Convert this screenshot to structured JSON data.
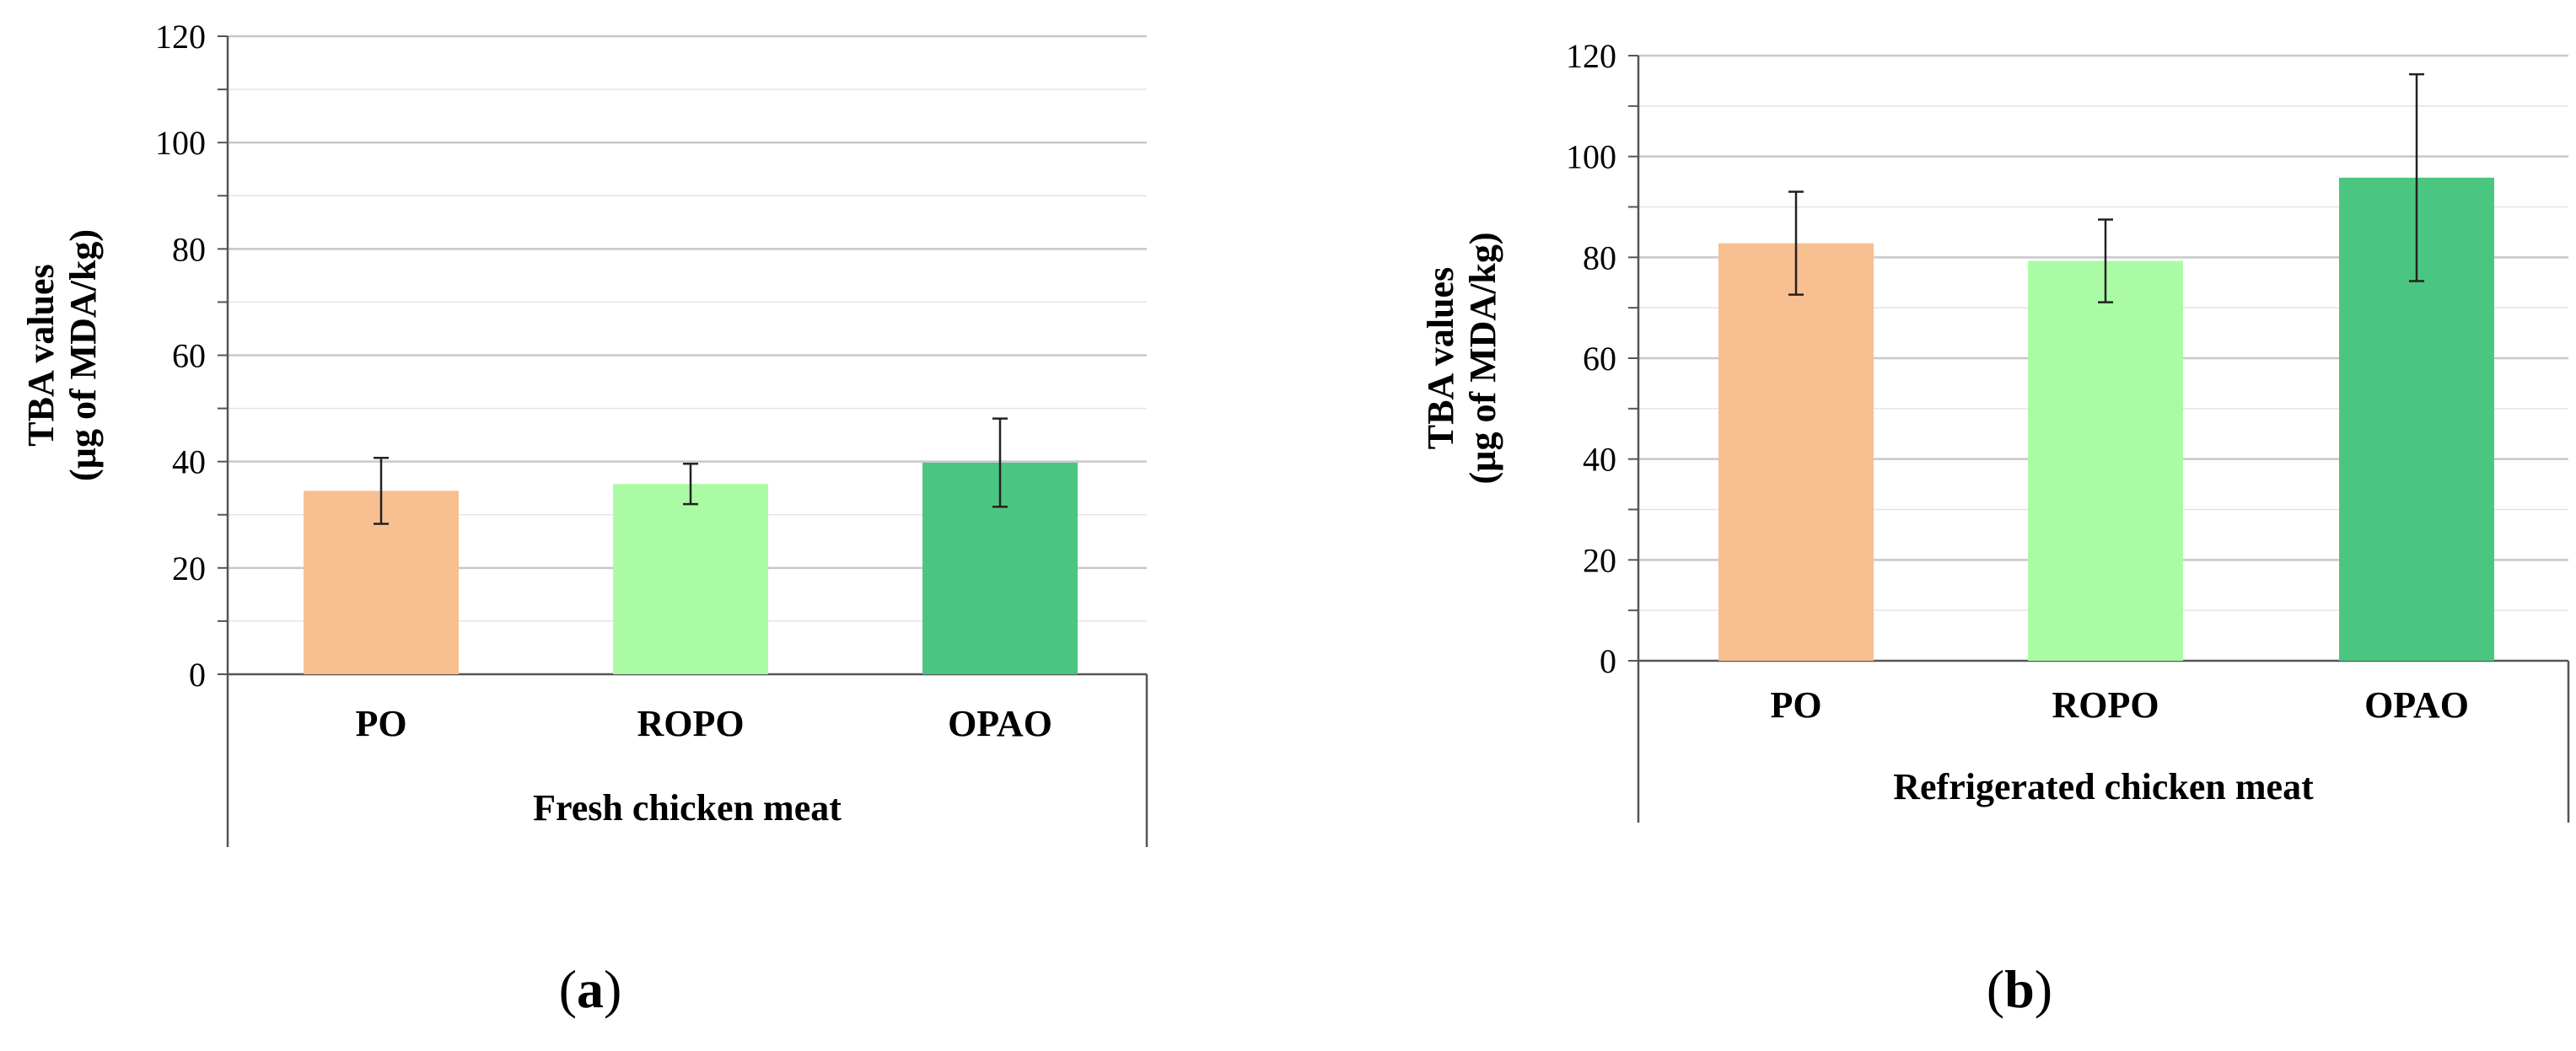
{
  "chart_data": [
    {
      "type": "bar",
      "panel_label": "a",
      "categories": [
        "PO",
        "ROPO",
        "OPAO"
      ],
      "values": [
        34.5,
        35.8,
        39.8
      ],
      "errors": [
        6.2,
        3.8,
        8.3
      ],
      "colors": [
        "#F8BF91",
        "#ABFBA5",
        "#4BC681"
      ],
      "xlabel": "Fresh chicken meat",
      "ylabel_line1": "TBA values",
      "ylabel_line2": "(µg of MDA/kg)",
      "ylim": [
        0,
        120
      ],
      "yticks": [
        0,
        20,
        40,
        60,
        80,
        100,
        120
      ],
      "grid": true
    },
    {
      "type": "bar",
      "panel_label": "b",
      "categories": [
        "PO",
        "ROPO",
        "OPAO"
      ],
      "values": [
        82.8,
        79.3,
        95.8
      ],
      "errors": [
        10.2,
        8.2,
        20.5
      ],
      "colors": [
        "#F8BF91",
        "#ABFBA5",
        "#4BC681"
      ],
      "xlabel": "Refrigerated chicken meat",
      "ylabel_line1": "TBA values",
      "ylabel_line2": "(µg of MDA/kg)",
      "ylim": [
        0,
        120
      ],
      "yticks": [
        0,
        20,
        40,
        60,
        80,
        100,
        120
      ],
      "grid": true
    }
  ]
}
